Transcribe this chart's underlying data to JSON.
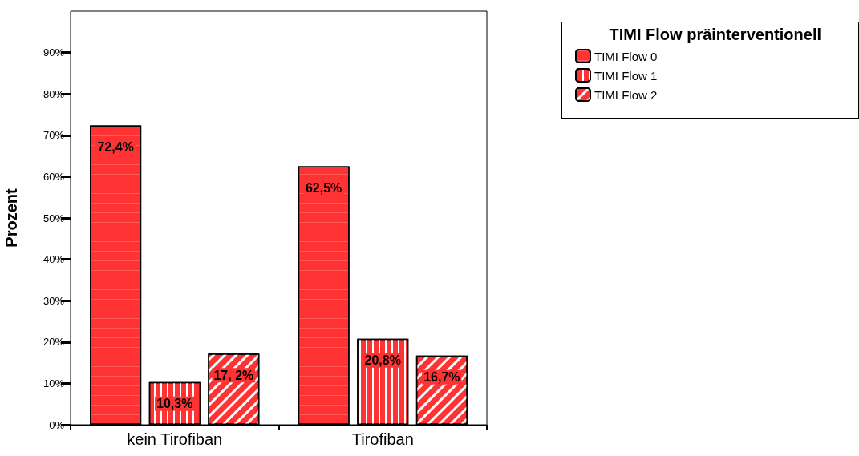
{
  "chart_data": {
    "type": "bar",
    "ylabel": "Prozent",
    "legend_title": "TIMI Flow präinterventionell",
    "categories": [
      "kein Tirofiban",
      "Tirofiban"
    ],
    "series": [
      {
        "name": "TIMI Flow 0",
        "color": "#ff3333",
        "values": [
          72.4,
          62.5
        ],
        "value_labels": [
          "72,4%",
          "62,5%"
        ]
      },
      {
        "name": "TIMI Flow 1",
        "color": "#ff3333",
        "values": [
          10.3,
          20.8
        ],
        "value_labels": [
          "10,3%",
          "20,8%"
        ]
      },
      {
        "name": "TIMI Flow 2",
        "color": "#ff3333",
        "values": [
          17.2,
          16.7
        ],
        "value_labels": [
          "17, 2%",
          "16,7%"
        ]
      }
    ],
    "ylim": [
      0,
      100
    ],
    "yticks": [
      {
        "value": 0,
        "label": "0%"
      },
      {
        "value": 10,
        "label": "10%"
      },
      {
        "value": 20,
        "label": "20%"
      },
      {
        "value": 30,
        "label": "30%"
      },
      {
        "value": 40,
        "label": "40%"
      },
      {
        "value": 50,
        "label": "50%"
      },
      {
        "value": 60,
        "label": "60%"
      },
      {
        "value": 70,
        "label": "70%"
      },
      {
        "value": 80,
        "label": "80%"
      },
      {
        "value": 90,
        "label": "90%"
      }
    ],
    "grid": false,
    "legend": "top right"
  }
}
